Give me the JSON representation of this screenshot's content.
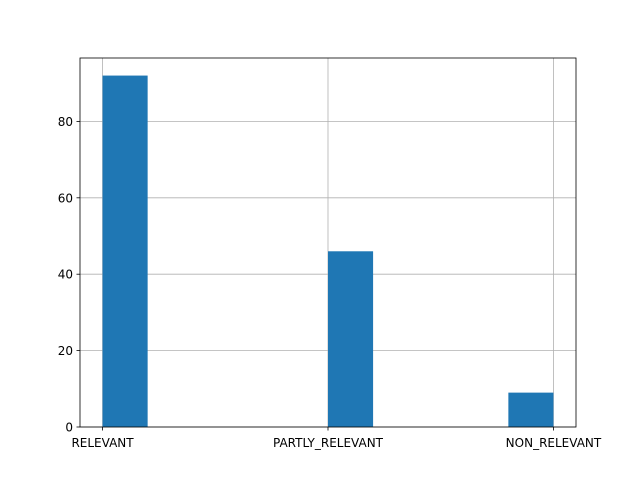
{
  "chart_data": {
    "type": "bar",
    "title": "",
    "xlabel": "",
    "ylabel": "",
    "categories": [
      "RELEVANT",
      "PARTLY_RELEVANT",
      "NON_RELEVANT"
    ],
    "category_positions": [
      0,
      1,
      2
    ],
    "bars": [
      {
        "x_start": 0.0,
        "x_end": 0.2,
        "value": 92
      },
      {
        "x_start": 1.0,
        "x_end": 1.2,
        "value": 46
      },
      {
        "x_start": 1.8,
        "x_end": 2.0,
        "value": 9
      }
    ],
    "xlim": [
      -0.1,
      2.1
    ],
    "ylim": [
      0,
      96.6
    ],
    "yticks": [
      0,
      20,
      40,
      60,
      80
    ],
    "grid": true,
    "bar_color": "#1f77b4",
    "grid_color": "#b0b0b0"
  }
}
